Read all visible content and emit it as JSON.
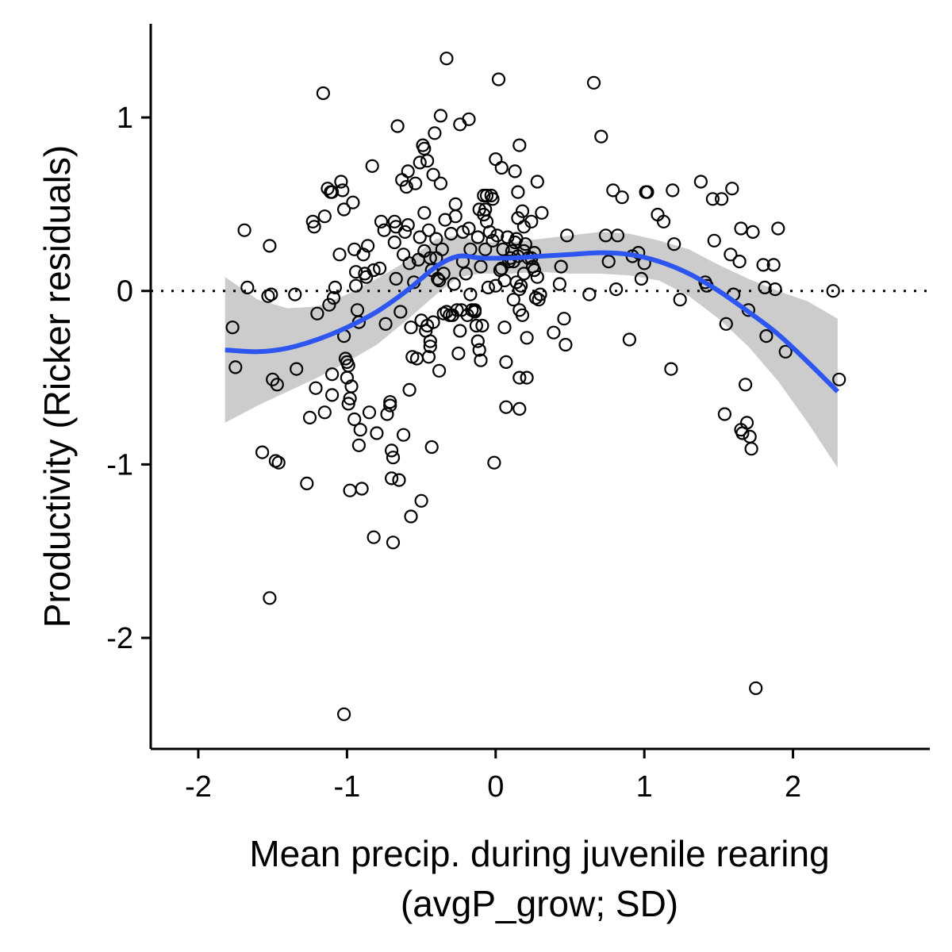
{
  "chart_data": {
    "type": "scatter",
    "title": "",
    "xlabel": [
      "Mean precip. during juvenile rearing",
      "(avgP_grow; SD)"
    ],
    "ylabel": "Productivity (Ricker residuals)",
    "xlim": [
      -2.32,
      2.92
    ],
    "ylim": [
      -2.64,
      1.54
    ],
    "x_ticks": [
      -2,
      -1,
      0,
      1,
      2
    ],
    "y_ticks": [
      -2,
      -1,
      0,
      1
    ],
    "x_tick_labels": [
      "-2",
      "-1",
      "0",
      "1",
      "2"
    ],
    "y_tick_labels": [
      "-2",
      "-1",
      "0",
      "1"
    ],
    "reference_line": {
      "y": 0,
      "style": "dotted",
      "color": "#000000"
    },
    "grid": false,
    "colors": {
      "points": "#000000",
      "smooth": "#2D55F0",
      "band": "#CCCCCC"
    },
    "points": [
      [
        -1.16,
        1.14
      ],
      [
        -1.75,
        -0.44
      ],
      [
        -1.69,
        0.35
      ],
      [
        -1.77,
        -0.21
      ],
      [
        -1.67,
        0.02
      ],
      [
        -1.53,
        -0.03
      ],
      [
        -1.51,
        -0.02
      ],
      [
        -1.52,
        0.26
      ],
      [
        -1.5,
        -0.51
      ],
      [
        -1.47,
        -0.54
      ],
      [
        -1.52,
        -1.77
      ],
      [
        -1.57,
        -0.93
      ],
      [
        -1.48,
        -0.98
      ],
      [
        -1.46,
        -0.99
      ],
      [
        -1.35,
        -0.02
      ],
      [
        -1.34,
        -0.45
      ],
      [
        -1.27,
        -1.11
      ],
      [
        -1.25,
        -0.73
      ],
      [
        -1.23,
        0.4
      ],
      [
        -1.22,
        0.37
      ],
      [
        -1.21,
        -0.56
      ],
      [
        -1.2,
        -0.13
      ],
      [
        -1.15,
        0.43
      ],
      [
        -1.15,
        -0.7
      ],
      [
        -1.12,
        -0.08
      ],
      [
        -1.13,
        0.59
      ],
      [
        -1.11,
        0.57
      ],
      [
        -1.1,
        0.57
      ],
      [
        -1.09,
        -0.04
      ],
      [
        -1.1,
        -0.6
      ],
      [
        -1.1,
        -0.48
      ],
      [
        -1.08,
        0.02
      ],
      [
        -1.05,
        0.21
      ],
      [
        -1.04,
        0.63
      ],
      [
        -1.03,
        0.58
      ],
      [
        -1.02,
        0.47
      ],
      [
        -1.02,
        -0.26
      ],
      [
        -1.0,
        -0.41
      ],
      [
        -0.99,
        -0.43
      ],
      [
        -1.01,
        -0.39
      ],
      [
        -1.0,
        -0.5
      ],
      [
        -0.99,
        -0.65
      ],
      [
        -0.98,
        -0.62
      ],
      [
        -0.97,
        -0.55
      ],
      [
        -0.95,
        -0.74
      ],
      [
        -0.98,
        -1.15
      ],
      [
        -0.96,
        0.51
      ],
      [
        -0.95,
        0.24
      ],
      [
        -0.94,
        0.11
      ],
      [
        -0.94,
        0.03
      ],
      [
        -0.93,
        -0.11
      ],
      [
        -0.92,
        -0.18
      ],
      [
        -0.91,
        -0.8
      ],
      [
        -0.92,
        -0.89
      ],
      [
        -0.9,
        -1.14
      ],
      [
        -0.89,
        0.21
      ],
      [
        -0.88,
        0.1
      ],
      [
        -0.87,
        0.08
      ],
      [
        -0.86,
        0.26
      ],
      [
        -0.85,
        -0.7
      ],
      [
        -0.83,
        0.72
      ],
      [
        -0.82,
        0.12
      ],
      [
        -0.8,
        -0.82
      ],
      [
        -0.82,
        -1.42
      ],
      [
        -0.78,
        0.13
      ],
      [
        -0.77,
        0.4
      ],
      [
        -0.75,
        0.35
      ],
      [
        -0.74,
        -0.19
      ],
      [
        -0.73,
        -0.71
      ],
      [
        -0.71,
        -0.64
      ],
      [
        -0.71,
        -0.66
      ],
      [
        -0.7,
        -0.92
      ],
      [
        -0.7,
        -1.08
      ],
      [
        -0.69,
        -0.96
      ],
      [
        -0.69,
        -1.45
      ],
      [
        -0.68,
        0.28
      ],
      [
        -0.68,
        0.4
      ],
      [
        -0.67,
        0.37
      ],
      [
        -0.67,
        0.07
      ],
      [
        -0.66,
        0.95
      ],
      [
        -0.65,
        -1.09
      ],
      [
        -0.64,
        -0.12
      ],
      [
        -0.63,
        0.64
      ],
      [
        -0.62,
        0.21
      ],
      [
        -0.62,
        -0.83
      ],
      [
        -0.61,
        0.34
      ],
      [
        -0.6,
        0.6
      ],
      [
        -0.59,
        0.69
      ],
      [
        -0.59,
        0.38
      ],
      [
        -0.58,
        0.16
      ],
      [
        -0.58,
        -0.57
      ],
      [
        -0.57,
        -0.21
      ],
      [
        -0.57,
        -1.3
      ],
      [
        -0.56,
        -0.38
      ],
      [
        -0.55,
        0.05
      ],
      [
        -0.54,
        0.62
      ],
      [
        -0.53,
        -0.39
      ],
      [
        -0.52,
        0.18
      ],
      [
        -0.51,
        0.74
      ],
      [
        -0.51,
        0.31
      ],
      [
        -0.5,
        -0.17
      ],
      [
        -0.5,
        -1.21
      ],
      [
        -0.49,
        0.84
      ],
      [
        -0.48,
        0.82
      ],
      [
        -0.48,
        0.45
      ],
      [
        -0.48,
        0.23
      ],
      [
        -0.47,
        -0.23
      ],
      [
        -0.46,
        0.75
      ],
      [
        -0.46,
        -0.2
      ],
      [
        -0.45,
        0.35
      ],
      [
        -0.45,
        -0.38
      ],
      [
        -0.44,
        -0.32
      ],
      [
        -0.44,
        -0.29
      ],
      [
        -0.44,
        0.19
      ],
      [
        -0.43,
        0.12
      ],
      [
        -0.43,
        -0.9
      ],
      [
        -0.42,
        -0.18
      ],
      [
        -0.42,
        0.67
      ],
      [
        -0.41,
        0.91
      ],
      [
        -0.4,
        0.3
      ],
      [
        -0.4,
        0.19
      ],
      [
        -0.39,
        0.07
      ],
      [
        -0.38,
        0.06
      ],
      [
        -0.38,
        -0.46
      ],
      [
        -0.37,
        1.01
      ],
      [
        -0.37,
        0.62
      ],
      [
        -0.36,
        0.24
      ],
      [
        -0.35,
        0.1
      ],
      [
        -0.35,
        -0.13
      ],
      [
        -0.34,
        0.41
      ],
      [
        -0.33,
        -0.12
      ],
      [
        -0.33,
        1.34
      ],
      [
        -0.31,
        -0.14
      ],
      [
        -0.3,
        0.33
      ],
      [
        -0.29,
        -0.14
      ],
      [
        -0.28,
        0.04
      ],
      [
        -0.27,
        0.5
      ],
      [
        -0.27,
        0.43
      ],
      [
        -0.26,
        -0.11
      ],
      [
        -0.25,
        -0.36
      ],
      [
        -0.24,
        0.96
      ],
      [
        -0.24,
        -0.23
      ],
      [
        -0.23,
        -0.11
      ],
      [
        -0.22,
        0.34
      ],
      [
        -0.22,
        0.17
      ],
      [
        -0.2,
        0.1
      ],
      [
        -0.19,
        -0.14
      ],
      [
        -0.18,
        0.36
      ],
      [
        -0.17,
        0.24
      ],
      [
        -0.17,
        -0.02
      ],
      [
        -0.18,
        0.99
      ],
      [
        -0.16,
        -0.11
      ],
      [
        -0.14,
        -0.11
      ],
      [
        -0.14,
        -0.12
      ],
      [
        -0.13,
        -0.2
      ],
      [
        -0.12,
        0.31
      ],
      [
        -0.12,
        -0.29
      ],
      [
        -0.11,
        -0.34
      ],
      [
        -0.11,
        0.47
      ],
      [
        -0.1,
        -0.4
      ],
      [
        -0.1,
        0.14
      ],
      [
        -0.09,
        -0.2
      ],
      [
        -0.08,
        0.55
      ],
      [
        -0.08,
        0.44
      ],
      [
        -0.07,
        0.47
      ],
      [
        -0.07,
        0.24
      ],
      [
        -0.06,
        0.55
      ],
      [
        -0.06,
        0.4
      ],
      [
        -0.05,
        0.02
      ],
      [
        -0.04,
        0.34
      ],
      [
        -0.03,
        0.55
      ],
      [
        -0.02,
        0.53
      ],
      [
        -0.02,
        0.29
      ],
      [
        -0.01,
        -0.99
      ],
      [
        0.0,
        0.03
      ],
      [
        0.0,
        0.76
      ],
      [
        0.01,
        0.32
      ],
      [
        0.02,
        1.22
      ],
      [
        0.03,
        0.12
      ],
      [
        0.04,
        0.13
      ],
      [
        0.04,
        0.71
      ],
      [
        0.05,
        0.24
      ],
      [
        0.06,
        0.06
      ],
      [
        0.06,
        -0.21
      ],
      [
        0.07,
        -0.41
      ],
      [
        0.07,
        -0.67
      ],
      [
        0.08,
        0.31
      ],
      [
        0.09,
        0.17
      ],
      [
        0.1,
        0.19
      ],
      [
        0.11,
        0.23
      ],
      [
        0.12,
        -0.05
      ],
      [
        0.12,
        0.17
      ],
      [
        0.13,
        0.69
      ],
      [
        0.13,
        0.28
      ],
      [
        0.14,
        0.3
      ],
      [
        0.14,
        0.05
      ],
      [
        0.15,
        0.2
      ],
      [
        0.15,
        0.57
      ],
      [
        0.15,
        0.42
      ],
      [
        0.16,
        0.84
      ],
      [
        0.16,
        -0.11
      ],
      [
        0.16,
        0.01
      ],
      [
        0.16,
        -0.5
      ],
      [
        0.16,
        -0.68
      ],
      [
        0.17,
        0.03
      ],
      [
        0.18,
        -0.14
      ],
      [
        0.18,
        0.46
      ],
      [
        0.19,
        0.23
      ],
      [
        0.19,
        0.37
      ],
      [
        0.19,
        0.1
      ],
      [
        0.2,
        0.27
      ],
      [
        0.21,
        -0.27
      ],
      [
        0.21,
        -0.5
      ],
      [
        0.22,
        0.19
      ],
      [
        0.24,
        0.19
      ],
      [
        0.24,
        0.4
      ],
      [
        0.25,
        0.14
      ],
      [
        0.26,
        0.22
      ],
      [
        0.26,
        0.12
      ],
      [
        0.27,
        -0.04
      ],
      [
        0.28,
        0.63
      ],
      [
        0.28,
        0.08
      ],
      [
        0.29,
        -0.05
      ],
      [
        0.3,
        -0.02
      ],
      [
        0.31,
        0.45
      ],
      [
        0.39,
        -0.24
      ],
      [
        0.43,
        0.04
      ],
      [
        0.44,
        0.14
      ],
      [
        0.46,
        -0.16
      ],
      [
        0.47,
        -0.31
      ],
      [
        0.48,
        0.32
      ],
      [
        0.63,
        -0.02
      ],
      [
        0.66,
        1.2
      ],
      [
        0.71,
        0.89
      ],
      [
        0.74,
        0.32
      ],
      [
        0.76,
        0.17
      ],
      [
        0.79,
        0.58
      ],
      [
        0.82,
        0.32
      ],
      [
        0.81,
        0.01
      ],
      [
        0.85,
        0.54
      ],
      [
        0.9,
        -0.28
      ],
      [
        0.92,
        0.2
      ],
      [
        0.96,
        0.22
      ],
      [
        0.98,
        0.07
      ],
      [
        1.0,
        0.16
      ],
      [
        1.01,
        0.57
      ],
      [
        1.02,
        0.57
      ],
      [
        1.09,
        0.44
      ],
      [
        1.13,
        0.4
      ],
      [
        1.18,
        -0.45
      ],
      [
        1.19,
        0.58
      ],
      [
        1.2,
        0.27
      ],
      [
        1.24,
        -0.05
      ],
      [
        1.38,
        0.63
      ],
      [
        1.41,
        0.05
      ],
      [
        1.42,
        0.03
      ],
      [
        1.46,
        0.53
      ],
      [
        1.47,
        0.29
      ],
      [
        1.52,
        0.53
      ],
      [
        1.54,
        -0.71
      ],
      [
        1.55,
        -0.19
      ],
      [
        1.58,
        0.21
      ],
      [
        1.59,
        0.59
      ],
      [
        1.6,
        -0.02
      ],
      [
        1.64,
        0.17
      ],
      [
        1.65,
        0.36
      ],
      [
        1.65,
        -0.8
      ],
      [
        1.66,
        -0.82
      ],
      [
        1.68,
        -0.54
      ],
      [
        1.69,
        -0.76
      ],
      [
        1.7,
        -0.11
      ],
      [
        1.71,
        -0.84
      ],
      [
        1.72,
        -0.91
      ],
      [
        1.73,
        0.34
      ],
      [
        1.75,
        -2.29
      ],
      [
        1.8,
        0.15
      ],
      [
        1.81,
        0.02
      ],
      [
        1.82,
        -0.26
      ],
      [
        1.87,
        0.15
      ],
      [
        1.88,
        0.01
      ],
      [
        1.9,
        0.36
      ],
      [
        1.95,
        -0.35
      ],
      [
        2.27,
        -0.0
      ],
      [
        2.31,
        -0.51
      ],
      [
        -1.02,
        -2.44
      ]
    ],
    "smooth": {
      "x": [
        -1.82,
        -1.6,
        -1.4,
        -1.2,
        -1.0,
        -0.8,
        -0.6,
        -0.4,
        -0.25,
        -0.1,
        0.1,
        0.3,
        0.5,
        0.7,
        0.9,
        1.1,
        1.3,
        1.5,
        1.7,
        1.9,
        2.1,
        2.3
      ],
      "y": [
        -0.34,
        -0.35,
        -0.33,
        -0.28,
        -0.21,
        -0.12,
        0.0,
        0.14,
        0.2,
        0.19,
        0.19,
        0.2,
        0.21,
        0.22,
        0.21,
        0.17,
        0.1,
        0.0,
        -0.12,
        -0.25,
        -0.41,
        -0.58
      ],
      "lower": [
        -0.76,
        -0.66,
        -0.58,
        -0.5,
        -0.41,
        -0.31,
        -0.17,
        -0.02,
        0.08,
        0.1,
        0.1,
        0.11,
        0.1,
        0.1,
        0.09,
        0.06,
        -0.03,
        -0.16,
        -0.32,
        -0.52,
        -0.76,
        -1.02
      ],
      "upper": [
        0.08,
        -0.05,
        -0.1,
        -0.09,
        -0.02,
        0.07,
        0.17,
        0.3,
        0.32,
        0.28,
        0.28,
        0.3,
        0.32,
        0.34,
        0.33,
        0.29,
        0.24,
        0.15,
        0.07,
        0.0,
        -0.06,
        -0.16
      ]
    }
  }
}
